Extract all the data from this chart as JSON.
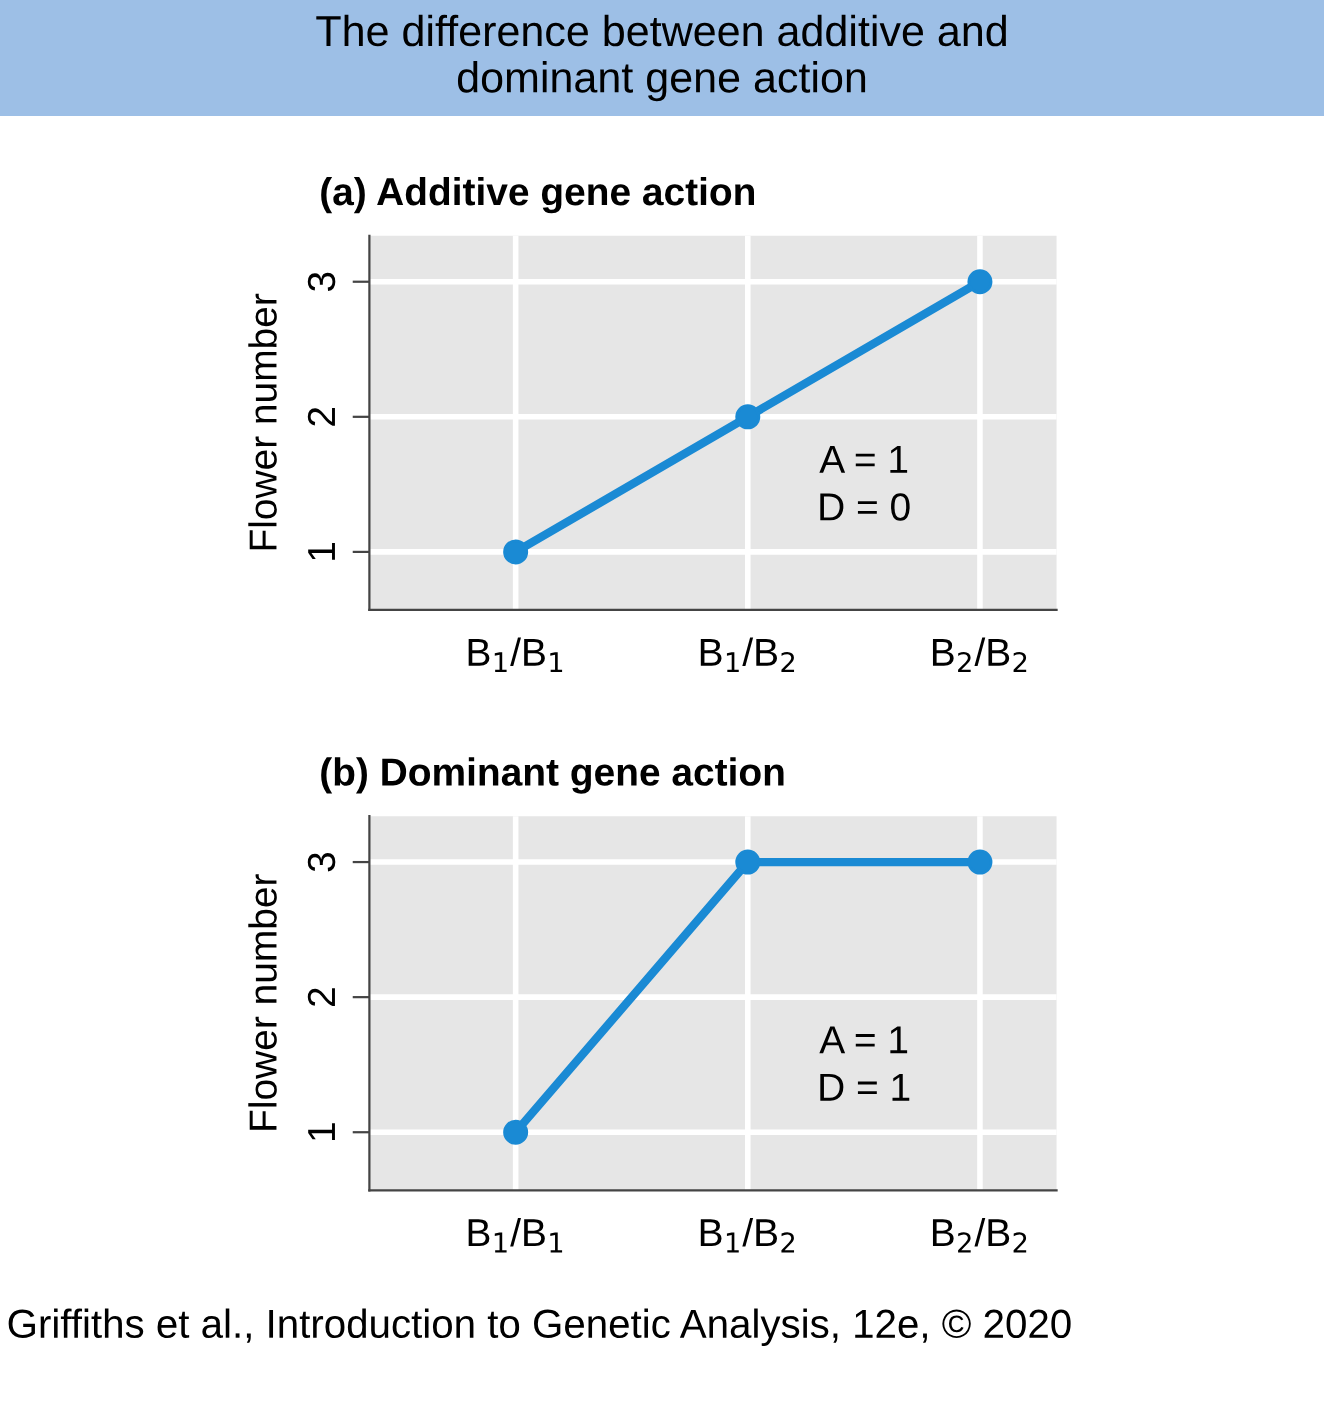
{
  "chart_data": [
    {
      "type": "other",
      "title": "The difference between additive and\ndominant gene action",
      "annotations": [
        "Griffiths et al., Introduction to Genetic Analysis, 12e, © 2020"
      ]
    },
    {
      "type": "line",
      "title": "(a) Additive gene action",
      "ylabel": "Flower number",
      "categories": [
        "B$_{1}$/B$_{1}$",
        "B$_{1}$/B$_{2}$",
        "B$_{2}$/B$_{2}$"
      ],
      "values": [
        1,
        2,
        3
      ],
      "color": "#1a8ad4",
      "ylim": [
        0.57,
        3.34
      ],
      "yticks": [
        1,
        2,
        3
      ],
      "grid": true,
      "marker": "circle",
      "line_style": "solid",
      "annotations": [
        "A = 1\nD = 0"
      ]
    },
    {
      "type": "line",
      "title": "(b) Dominant gene action",
      "ylabel": "Flower number",
      "categories": [
        "B$_{1}$/B$_{1}$",
        "B$_{1}$/B$_{2}$",
        "B$_{2}$/B$_{2}$"
      ],
      "values": [
        1,
        3,
        3
      ],
      "color": "#1a8ad4",
      "ylim": [
        0.57,
        3.34
      ],
      "yticks": [
        1,
        2,
        3
      ],
      "grid": true,
      "marker": "circle",
      "line_style": "solid",
      "annotations": [
        "A = 1\nD = 1"
      ]
    }
  ]
}
